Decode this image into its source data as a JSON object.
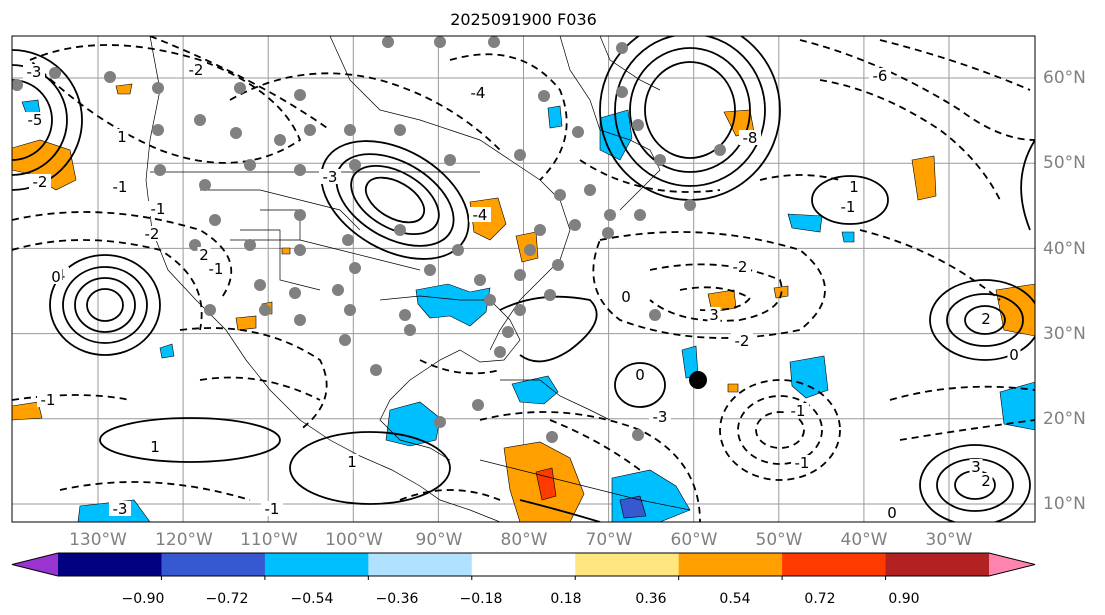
{
  "title": "2025091900 F036",
  "lat_labels": [
    "60°N",
    "50°N",
    "40°N",
    "30°N",
    "20°N",
    "10°N"
  ],
  "lon_labels": [
    "130°W",
    "120°W",
    "110°W",
    "100°W",
    "90°W",
    "80°W",
    "70°W",
    "60°W",
    "50°W",
    "40°W",
    "30°W"
  ],
  "colorbar": {
    "colors": [
      "#9a34d0",
      "#000080",
      "#3658d0",
      "#00bfff",
      "#b0e2ff",
      "#ffffff",
      "#ffe680",
      "#ffa000",
      "#ff3a00",
      "#b22222",
      "#ff85b0"
    ],
    "tick_labels": [
      "−0.90",
      "−0.72",
      "−0.54",
      "−0.36",
      "−0.18",
      "0.18",
      "0.36",
      "0.54",
      "0.72",
      "0.90"
    ]
  },
  "contour_labels": [
    "-3",
    "-2",
    "1",
    "-4",
    "-3",
    "-2",
    "-6",
    "-8",
    "-5",
    "-1",
    "-2",
    "-1",
    "-4",
    "0",
    "2",
    "-1",
    "-2",
    "3",
    "0",
    "-3",
    "-1",
    "0",
    "-1",
    "1",
    "-2",
    "-1",
    "2",
    "0",
    "3",
    "2",
    "0",
    "-3",
    "-1",
    "1",
    "1",
    "-1",
    "-4"
  ]
}
